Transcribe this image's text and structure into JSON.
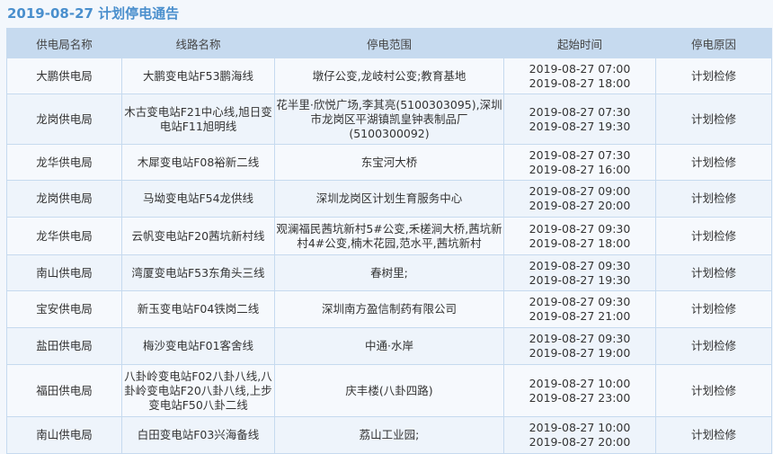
{
  "title": "2019-08-27  计划停电通告",
  "columns": [
    "供电局名称",
    "线路名称",
    "停电范围",
    "起始时间",
    "停电原因"
  ],
  "rows": [
    {
      "bureau": "大鹏供电局",
      "line": "大鹏变电站F53鹏海线",
      "range": "墩仔公变,龙岐村公变;教育基地",
      "start": "2019-08-27 07:00",
      "end": "2019-08-27 18:00",
      "reason": "计划检修"
    },
    {
      "bureau": "龙岗供电局",
      "line": "木古变电站F21中心线,旭日变电站F11旭明线",
      "range": "花半里·欣悦广场,李其亮(5100303095),深圳市龙岗区平湖镇凯皇钟表制品厂(5100300092)",
      "start": "2019-08-27 07:30",
      "end": "2019-08-27 19:30",
      "reason": "计划检修"
    },
    {
      "bureau": "龙华供电局",
      "line": "木犀变电站F08裕新二线",
      "range": "东宝河大桥",
      "start": "2019-08-27 07:30",
      "end": "2019-08-27 16:00",
      "reason": "计划检修"
    },
    {
      "bureau": "龙岗供电局",
      "line": "马坳变电站F54龙供线",
      "range": "深圳龙岗区计划生育服务中心",
      "start": "2019-08-27 09:00",
      "end": "2019-08-27 20:00",
      "reason": "计划检修"
    },
    {
      "bureau": "龙华供电局",
      "line": "云帆变电站F20茜坑新村线",
      "range": "观澜福民茜坑新村5#公变,禾槎涧大桥,茜坑新村4#公变,楠木花园,范水平,茜坑新村",
      "start": "2019-08-27 09:30",
      "end": "2019-08-27 18:00",
      "reason": "计划检修"
    },
    {
      "bureau": "南山供电局",
      "line": "湾厦变电站F53东角头三线",
      "range": "春树里;",
      "start": "2019-08-27 09:30",
      "end": "2019-08-27 19:30",
      "reason": "计划检修"
    },
    {
      "bureau": "宝安供电局",
      "line": "新玉变电站F04铁岗二线",
      "range": "深圳南方盈信制药有限公司",
      "start": "2019-08-27 09:30",
      "end": "2019-08-27 21:00",
      "reason": "计划检修"
    },
    {
      "bureau": "盐田供电局",
      "line": "梅沙变电站F01客舍线",
      "range": "中通·水岸",
      "start": "2019-08-27 09:30",
      "end": "2019-08-27 19:00",
      "reason": "计划检修"
    },
    {
      "bureau": "福田供电局",
      "line": "八卦岭变电站F02八卦八线,八卦岭变电站F20八卦八线,上步变电站F50八卦二线",
      "range": "庆丰楼(八卦四路)",
      "start": "2019-08-27 10:00",
      "end": "2019-08-27 23:00",
      "reason": "计划检修"
    },
    {
      "bureau": "南山供电局",
      "line": "白田变电站F03兴海备线",
      "range": "荔山工业园;",
      "start": "2019-08-27 10:00",
      "end": "2019-08-27 20:00",
      "reason": "计划检修"
    }
  ]
}
